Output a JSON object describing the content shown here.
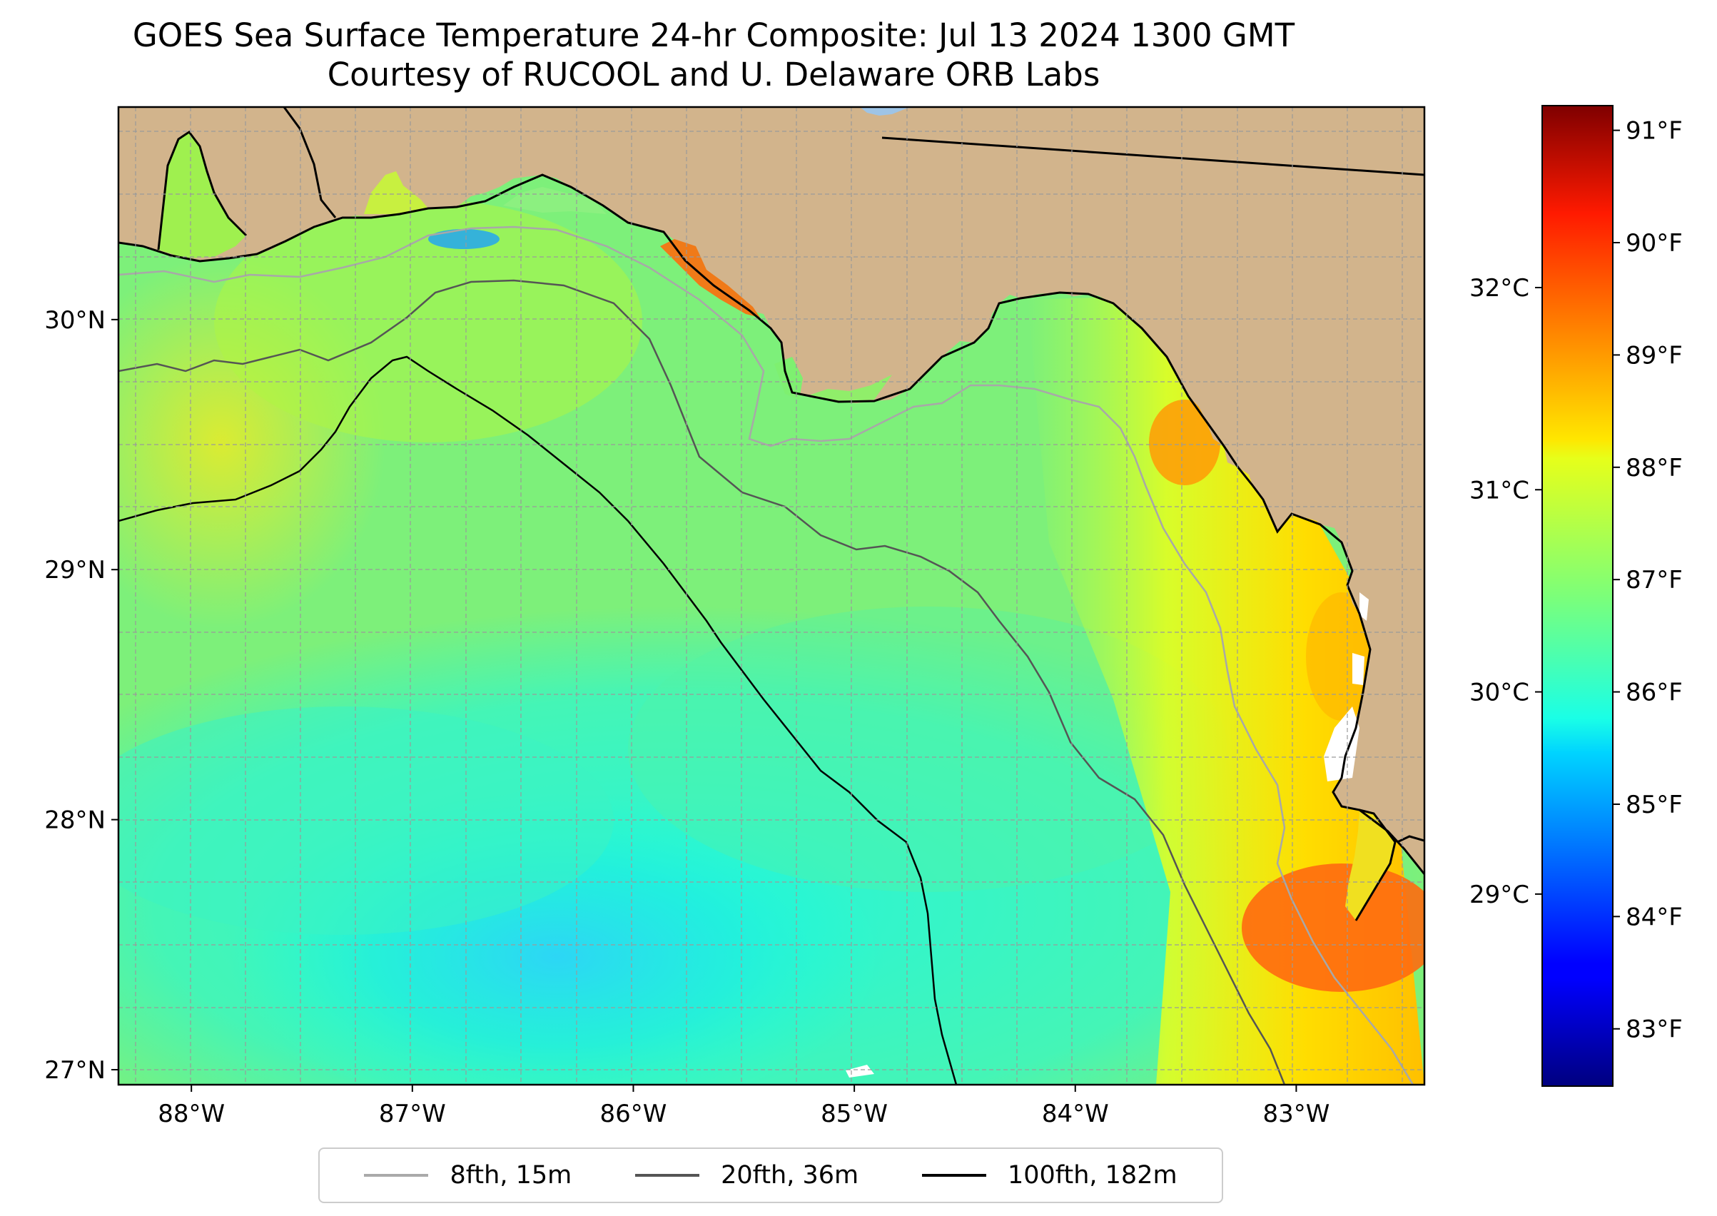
{
  "title": "GOES Sea Surface Temperature 24-hr Composite: Jul 13 2024 1300 GMT",
  "subtitle": "Courtesy of RUCOOL and U. Delaware ORB Labs",
  "map": {
    "lon_range": [
      -88.33,
      -82.42
    ],
    "lat_range": [
      26.94,
      30.85
    ],
    "lon_ticks": [
      {
        "value": -88,
        "label": "88°W"
      },
      {
        "value": -87,
        "label": "87°W"
      },
      {
        "value": -86,
        "label": "86°W"
      },
      {
        "value": -85,
        "label": "85°W"
      },
      {
        "value": -84,
        "label": "84°W"
      },
      {
        "value": -83,
        "label": "83°W"
      }
    ],
    "lat_ticks": [
      {
        "value": 27,
        "label": "27°N"
      },
      {
        "value": 28,
        "label": "28°N"
      },
      {
        "value": 29,
        "label": "29°N"
      },
      {
        "value": 30,
        "label": "30°N"
      }
    ],
    "colors": {
      "land": "#d2b48c",
      "coastline": "#000000",
      "gridline": "#9a9a9a",
      "no_data": "#ffffff",
      "lake": "#9ec4e6"
    }
  },
  "legend": {
    "items": [
      {
        "label": "8fth, 15m",
        "color": "#aaaaaa"
      },
      {
        "label": "20fth, 36m",
        "color": "#555555"
      },
      {
        "label": "100fth, 182m",
        "color": "#000000"
      }
    ]
  },
  "colorbar": {
    "colormap": "jet",
    "celsius_range": [
      28.05,
      32.9
    ],
    "fahrenheit_ticks": [
      {
        "value": 83,
        "label": "83°F"
      },
      {
        "value": 84,
        "label": "84°F"
      },
      {
        "value": 85,
        "label": "85°F"
      },
      {
        "value": 86,
        "label": "86°F"
      },
      {
        "value": 87,
        "label": "87°F"
      },
      {
        "value": 88,
        "label": "88°F"
      },
      {
        "value": 89,
        "label": "89°F"
      },
      {
        "value": 90,
        "label": "90°F"
      },
      {
        "value": 91,
        "label": "91°F"
      }
    ],
    "celsius_ticks": [
      {
        "value": 29,
        "label": "29°C"
      },
      {
        "value": 30,
        "label": "30°C"
      },
      {
        "value": 31,
        "label": "31°C"
      },
      {
        "value": 32,
        "label": "32°C"
      }
    ]
  }
}
